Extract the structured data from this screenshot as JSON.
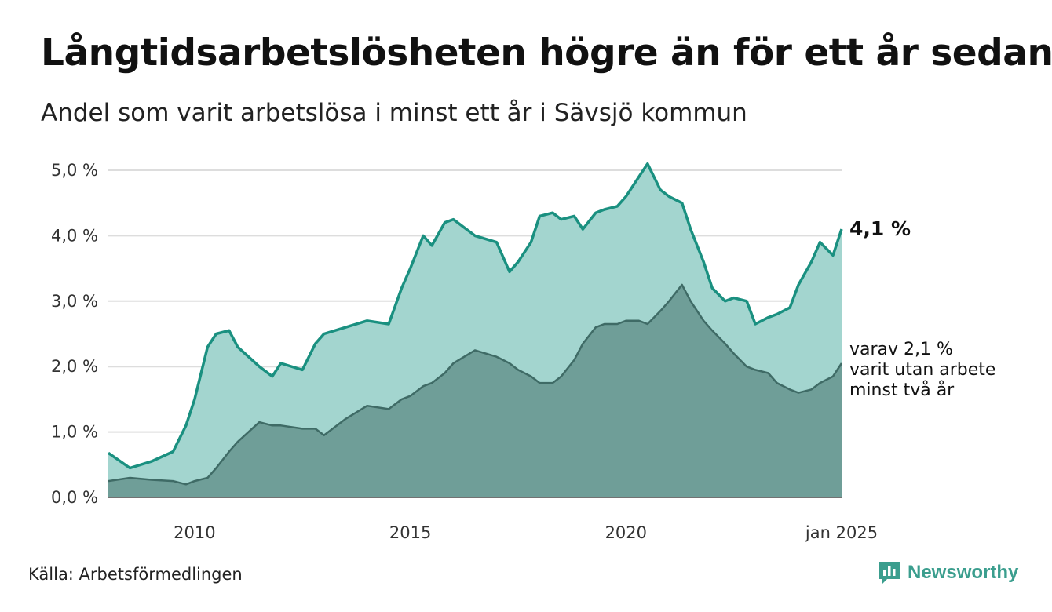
{
  "title": "Långtidsarbetslösheten högre än för ett år sedan",
  "subtitle": "Andel som varit arbetslösa i minst ett år i Sävsjö kommun",
  "source": "Källa: Arbetsförmedlingen",
  "brand": {
    "name": "Newsworthy",
    "icon": "newsworthy-logo-icon"
  },
  "colors": {
    "total_line": "#1a9080",
    "total_fill": "#a3d5cf",
    "longterm_line": "#3f6b66",
    "longterm_fill": "#6f9e98",
    "grid": "#dddddd"
  },
  "chart_data": {
    "type": "area",
    "x_ticks": [
      "2010",
      "2015",
      "2020",
      "jan 2025"
    ],
    "y_ticks": [
      "0,0 %",
      "1,0 %",
      "2,0 %",
      "3,0 %",
      "4,0 %",
      "5,0 %"
    ],
    "ylim": [
      0,
      5
    ],
    "xlim": [
      2008.0,
      2025.0
    ],
    "grid": true,
    "end_labels": {
      "total": "4,1 %",
      "longterm": [
        "varav 2,1 %",
        "varit utan arbete",
        "minst två år"
      ]
    },
    "series": [
      {
        "key": "total",
        "x": [
          2008.0,
          2008.5,
          2009.0,
          2009.5,
          2009.8,
          2010.0,
          2010.3,
          2010.5,
          2010.8,
          2011.0,
          2011.5,
          2011.8,
          2012.0,
          2012.5,
          2012.8,
          2013.0,
          2013.5,
          2014.0,
          2014.5,
          2014.8,
          2015.0,
          2015.3,
          2015.5,
          2015.8,
          2016.0,
          2016.5,
          2017.0,
          2017.3,
          2017.5,
          2017.8,
          2018.0,
          2018.3,
          2018.5,
          2018.8,
          2019.0,
          2019.3,
          2019.5,
          2019.8,
          2020.0,
          2020.3,
          2020.5,
          2020.8,
          2021.0,
          2021.3,
          2021.5,
          2021.8,
          2022.0,
          2022.3,
          2022.5,
          2022.8,
          2023.0,
          2023.3,
          2023.5,
          2023.8,
          2024.0,
          2024.3,
          2024.5,
          2024.8,
          2025.0
        ],
        "values": [
          0.68,
          0.45,
          0.55,
          0.7,
          1.1,
          1.5,
          2.3,
          2.5,
          2.55,
          2.3,
          2.0,
          1.85,
          2.05,
          1.95,
          2.35,
          2.5,
          2.6,
          2.7,
          2.65,
          3.2,
          3.5,
          4.0,
          3.85,
          4.2,
          4.25,
          4.0,
          3.9,
          3.45,
          3.6,
          3.9,
          4.3,
          4.35,
          4.25,
          4.3,
          4.1,
          4.35,
          4.4,
          4.45,
          4.6,
          4.9,
          5.1,
          4.7,
          4.6,
          4.5,
          4.1,
          3.6,
          3.2,
          3.0,
          3.05,
          3.0,
          2.65,
          2.75,
          2.8,
          2.9,
          3.25,
          3.6,
          3.9,
          3.7,
          4.1
        ]
      },
      {
        "key": "longterm",
        "x": [
          2008.0,
          2008.5,
          2009.0,
          2009.5,
          2009.8,
          2010.0,
          2010.3,
          2010.5,
          2010.8,
          2011.0,
          2011.5,
          2011.8,
          2012.0,
          2012.5,
          2012.8,
          2013.0,
          2013.5,
          2014.0,
          2014.5,
          2014.8,
          2015.0,
          2015.3,
          2015.5,
          2015.8,
          2016.0,
          2016.5,
          2017.0,
          2017.3,
          2017.5,
          2017.8,
          2018.0,
          2018.3,
          2018.5,
          2018.8,
          2019.0,
          2019.3,
          2019.5,
          2019.8,
          2020.0,
          2020.3,
          2020.5,
          2020.8,
          2021.0,
          2021.3,
          2021.5,
          2021.8,
          2022.0,
          2022.3,
          2022.5,
          2022.8,
          2023.0,
          2023.3,
          2023.5,
          2023.8,
          2024.0,
          2024.3,
          2024.5,
          2024.8,
          2025.0
        ],
        "values": [
          0.25,
          0.3,
          0.27,
          0.25,
          0.2,
          0.25,
          0.3,
          0.45,
          0.7,
          0.85,
          1.15,
          1.1,
          1.1,
          1.05,
          1.05,
          0.95,
          1.2,
          1.4,
          1.35,
          1.5,
          1.55,
          1.7,
          1.75,
          1.9,
          2.05,
          2.25,
          2.15,
          2.05,
          1.95,
          1.85,
          1.75,
          1.75,
          1.85,
          2.1,
          2.35,
          2.6,
          2.65,
          2.65,
          2.7,
          2.7,
          2.65,
          2.85,
          3.0,
          3.25,
          3.0,
          2.7,
          2.55,
          2.35,
          2.2,
          2.0,
          1.95,
          1.9,
          1.75,
          1.65,
          1.6,
          1.65,
          1.75,
          1.85,
          2.05
        ]
      }
    ]
  }
}
